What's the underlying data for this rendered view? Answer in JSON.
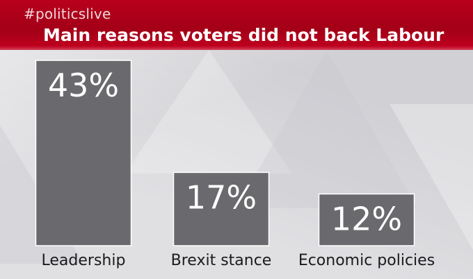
{
  "header": {
    "hashtag": "#politicslive",
    "title": "Main reasons voters did not back Labour"
  },
  "colors": {
    "header_red": "#b8001c",
    "bar_grey": "#6a6a6e",
    "background": "#dedee1"
  },
  "chart_data": {
    "type": "bar",
    "title": "Main reasons voters did not back Labour",
    "categories": [
      "Leadership",
      "Brexit stance",
      "Economic policies"
    ],
    "values": [
      43,
      17,
      12
    ],
    "value_labels": [
      "43%",
      "17%",
      "12%"
    ],
    "unit": "%",
    "xlabel": "",
    "ylabel": "",
    "ylim": [
      0,
      43
    ],
    "grid": false
  }
}
